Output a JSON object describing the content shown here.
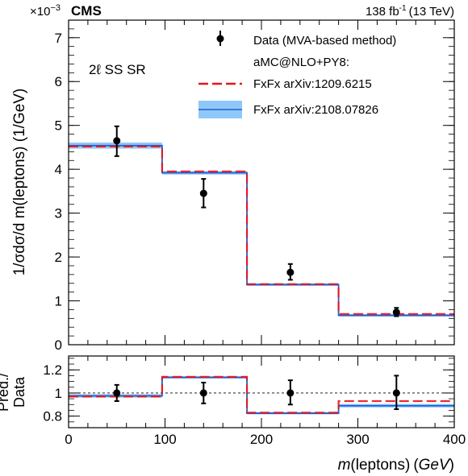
{
  "header": {
    "exponent_prefix": "×10",
    "exponent_power": "−3",
    "experiment": "CMS",
    "lumi_value": "138 fb",
    "lumi_power": "-1",
    "lumi_energy": "(13 TeV)"
  },
  "region_label": "2ℓ SS SR",
  "legend": {
    "data": "Data (MVA-based method)",
    "generator": "aMC@NLO+PY8:",
    "series_a": "FxFx arXiv:1209.6215",
    "series_b": "FxFx arXiv:2108.07826"
  },
  "colors": {
    "data": "#000000",
    "series_a": "#e8141c",
    "series_b": "#1f5fd6",
    "series_b_band": "#8fc8f8"
  },
  "chart_data": [
    {
      "type": "line",
      "panel": "main",
      "bin_edges": [
        0,
        97,
        185,
        280,
        400
      ],
      "bin_centers": [
        50,
        140,
        230,
        340
      ],
      "xlim": [
        0,
        400
      ],
      "ylim": [
        0,
        7.4
      ],
      "ylabel": "1/σdσ/d m(leptons) (1/GeV)",
      "y_multiplier": "×10^-3",
      "yticks": [
        0,
        1,
        2,
        3,
        4,
        5,
        6,
        7
      ],
      "series": [
        {
          "name": "Data (MVA-based method)",
          "values": [
            4.65,
            3.45,
            1.65,
            0.74
          ],
          "err_lo": [
            0.35,
            0.32,
            0.17,
            0.09
          ],
          "err_hi": [
            0.33,
            0.33,
            0.19,
            0.1
          ]
        },
        {
          "name": "FxFx arXiv:1209.6215",
          "values": [
            4.52,
            3.95,
            1.38,
            0.7
          ]
        },
        {
          "name": "FxFx arXiv:2108.07826",
          "values": [
            4.54,
            3.92,
            1.37,
            0.67
          ],
          "band_lo": [
            4.47,
            3.88,
            1.34,
            0.64
          ],
          "band_hi": [
            4.61,
            3.96,
            1.4,
            0.7
          ]
        }
      ]
    },
    {
      "type": "line",
      "panel": "ratio",
      "bin_edges": [
        0,
        97,
        185,
        280,
        400
      ],
      "bin_centers": [
        50,
        140,
        230,
        340
      ],
      "xlim": [
        0,
        400
      ],
      "ylim": [
        0.7,
        1.32
      ],
      "ylabel": "Pred./ Data",
      "xlabel": "m(leptons) (GeV)",
      "yticks": [
        0.8,
        1,
        1.2
      ],
      "ytick_labels": [
        "0.8",
        "1",
        "1.2"
      ],
      "xticks": [
        0,
        100,
        200,
        300,
        400
      ],
      "xtick_labels": [
        "0",
        "100",
        "200",
        "300",
        "400"
      ],
      "reference_line": 1,
      "series": [
        {
          "name": "Data (MVA-based method)",
          "values": [
            1,
            1,
            1,
            1
          ],
          "err_lo": [
            0.07,
            0.09,
            0.1,
            0.14
          ],
          "err_hi": [
            0.07,
            0.09,
            0.11,
            0.15
          ]
        },
        {
          "name": "FxFx arXiv:1209.6215",
          "values": [
            0.97,
            1.14,
            0.83,
            0.93
          ]
        },
        {
          "name": "FxFx arXiv:2108.07826",
          "values": [
            0.975,
            1.135,
            0.825,
            0.89
          ],
          "band_lo": [
            0.96,
            1.125,
            0.815,
            0.875
          ],
          "band_hi": [
            0.99,
            1.145,
            0.835,
            0.905
          ]
        }
      ]
    }
  ]
}
